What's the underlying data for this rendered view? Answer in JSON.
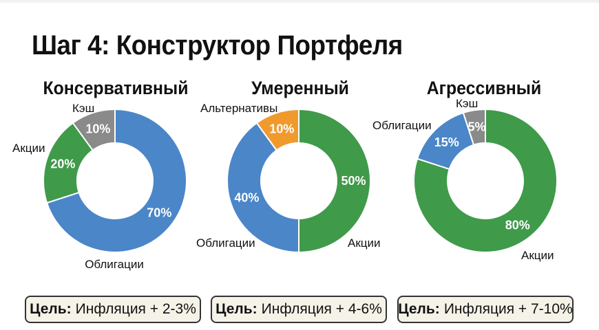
{
  "page_title": "Шаг 4: Конструктор Портфеля",
  "colors": {
    "blue": "#4a86c8",
    "green": "#3f9a4a",
    "gray": "#8a8a8a",
    "orange": "#f09a2e"
  },
  "chart_data": [
    {
      "type": "pie",
      "title": "Консервативный",
      "slices": [
        {
          "label": "Облигации",
          "value": 70,
          "value_label": "70%",
          "color": "#4a86c8"
        },
        {
          "label": "Акции",
          "value": 20,
          "value_label": "20%",
          "color": "#3f9a4a"
        },
        {
          "label": "Кэш",
          "value": 10,
          "value_label": "10%",
          "color": "#8a8a8a"
        }
      ]
    },
    {
      "type": "pie",
      "title": "Умеренный",
      "slices": [
        {
          "label": "Акции",
          "value": 50,
          "value_label": "50%",
          "color": "#3f9a4a"
        },
        {
          "label": "Облигации",
          "value": 40,
          "value_label": "40%",
          "color": "#4a86c8"
        },
        {
          "label": "Альтернативы",
          "value": 10,
          "value_label": "10%",
          "color": "#f09a2e"
        }
      ]
    },
    {
      "type": "pie",
      "title": "Агрессивный",
      "slices": [
        {
          "label": "Акции",
          "value": 80,
          "value_label": "80%",
          "color": "#3f9a4a"
        },
        {
          "label": "Облигации",
          "value": 15,
          "value_label": "15%",
          "color": "#4a86c8"
        },
        {
          "label": "Кэш",
          "value": 5,
          "value_label": "5%",
          "color": "#8a8a8a"
        }
      ]
    }
  ],
  "goals": [
    {
      "prefix": "Цель:",
      "text": "Инфляция + 2-3%"
    },
    {
      "prefix": "Цель:",
      "text": "Инфляция + 4-6%"
    },
    {
      "prefix": "Цель:",
      "text": "Инфляция + 7-10%"
    }
  ]
}
